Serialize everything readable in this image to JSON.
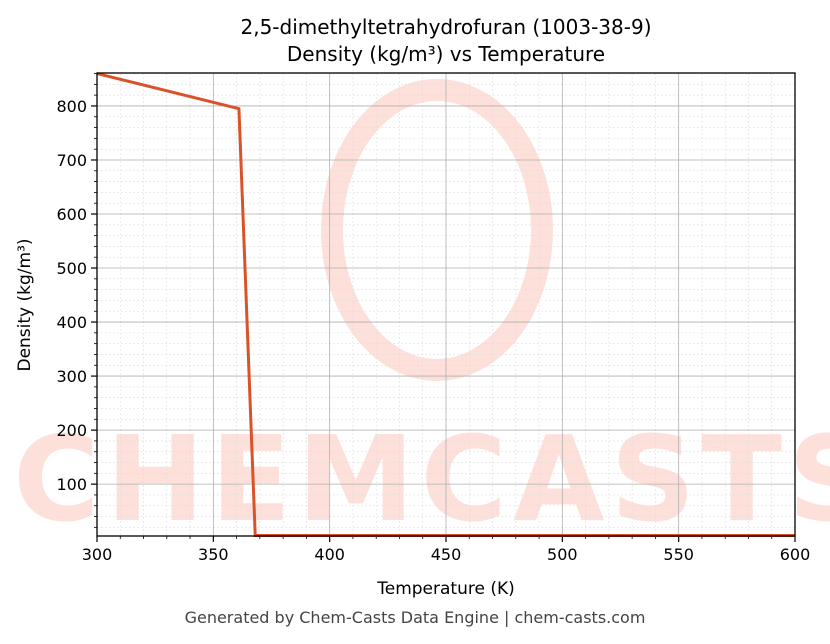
{
  "title_line1": "2,5-dimethyltetrahydrofuran (1003-38-9)",
  "title_line2": "Density (kg/m³) vs Temperature",
  "footer": "Generated by Chem-Casts Data Engine | chem-casts.com",
  "watermark": "CHEMCASTS",
  "colors": {
    "line": "#d9532a",
    "watermark": "#fde0da",
    "grid": "#b0b0b0"
  },
  "chart_data": {
    "type": "line",
    "title": "2,5-dimethyltetrahydrofuran (1003-38-9) Density (kg/m³) vs Temperature",
    "xlabel": "Temperature (K)",
    "ylabel": "Density (kg/m³)",
    "xlim": [
      300,
      600
    ],
    "ylim": [
      4,
      861
    ],
    "xticks": [
      300,
      350,
      400,
      450,
      500,
      550,
      600
    ],
    "yticks": [
      100,
      200,
      300,
      400,
      500,
      600,
      700,
      800
    ],
    "grid": true,
    "series": [
      {
        "name": "Density",
        "x": [
          300,
          361,
          368,
          600
        ],
        "y": [
          860,
          795,
          5,
          5
        ]
      }
    ]
  }
}
